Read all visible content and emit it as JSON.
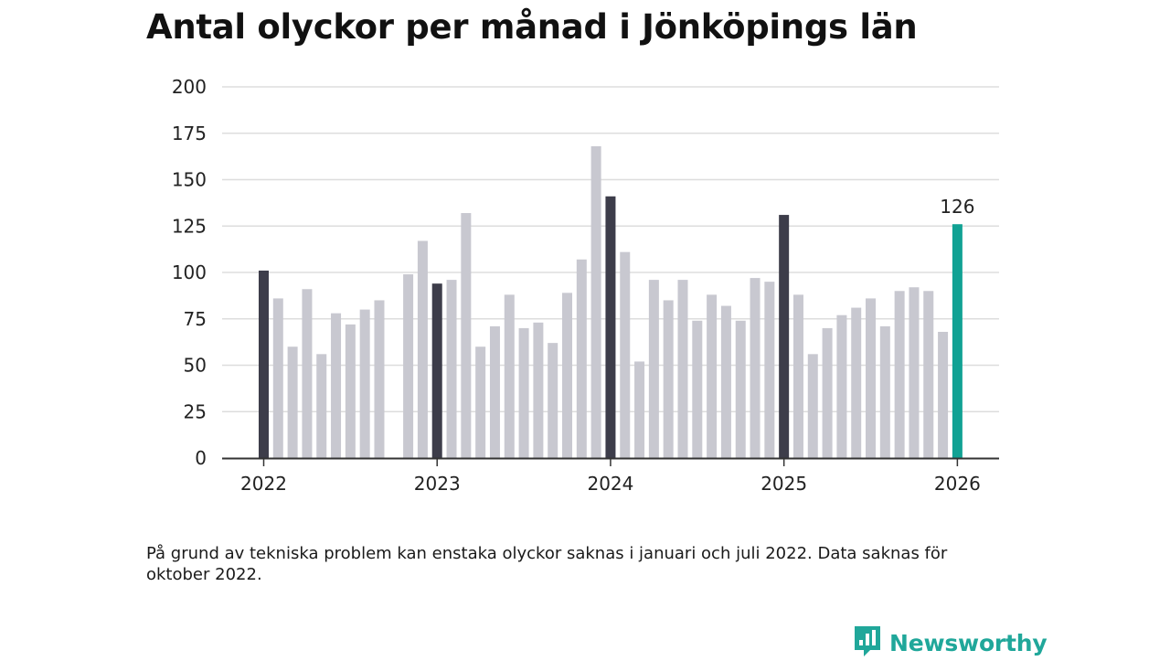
{
  "chart_data": {
    "type": "bar",
    "title": "Antal olyckor per månad i Jönköpings län",
    "xlabel": "",
    "ylabel": "",
    "ylim": [
      0,
      200
    ],
    "yticks": [
      0,
      25,
      50,
      75,
      100,
      125,
      150,
      175,
      200
    ],
    "xticks": [
      "2022",
      "2023",
      "2024",
      "2025",
      "2026"
    ],
    "grid": true,
    "annotations": [
      {
        "label": "126",
        "month": "2026-01"
      }
    ],
    "months": [
      "2022-01",
      "2022-02",
      "2022-03",
      "2022-04",
      "2022-05",
      "2022-06",
      "2022-07",
      "2022-08",
      "2022-09",
      "2022-10",
      "2022-11",
      "2022-12",
      "2023-01",
      "2023-02",
      "2023-03",
      "2023-04",
      "2023-05",
      "2023-06",
      "2023-07",
      "2023-08",
      "2023-09",
      "2023-10",
      "2023-11",
      "2023-12",
      "2024-01",
      "2024-02",
      "2024-03",
      "2024-04",
      "2024-05",
      "2024-06",
      "2024-07",
      "2024-08",
      "2024-09",
      "2024-10",
      "2024-11",
      "2024-12",
      "2025-01",
      "2025-02",
      "2025-03",
      "2025-04",
      "2025-05",
      "2025-06",
      "2025-07",
      "2025-08",
      "2025-09",
      "2025-10",
      "2025-11",
      "2025-12",
      "2026-01"
    ],
    "values": [
      101,
      86,
      60,
      91,
      56,
      78,
      72,
      80,
      85,
      null,
      99,
      117,
      94,
      96,
      132,
      60,
      71,
      88,
      70,
      73,
      62,
      89,
      107,
      168,
      141,
      111,
      52,
      96,
      85,
      96,
      74,
      88,
      82,
      74,
      97,
      95,
      131,
      88,
      56,
      70,
      77,
      81,
      86,
      71,
      90,
      92,
      90,
      68,
      126
    ],
    "colors": {
      "default": "#c8c8d0",
      "january": "#3d3d4a",
      "latest": "#11a294",
      "grid": "#dddddd",
      "axis": "#333333"
    }
  },
  "footnote": "På grund av tekniska problem kan enstaka olyckor saknas i januari och juli 2022. Data saknas för oktober 2022.",
  "brand": {
    "name": "Newsworthy",
    "icon": "newsworthy-logo-icon",
    "color": "#20a79a"
  }
}
